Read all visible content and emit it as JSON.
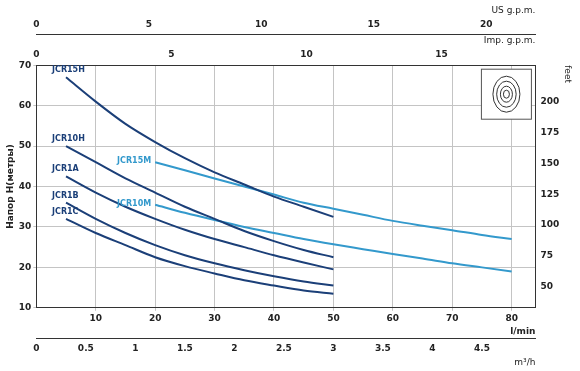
{
  "chart_data": {
    "type": "line",
    "xlabel": "l/min",
    "xlim": [
      0,
      84
    ],
    "xticks": [
      10,
      20,
      30,
      40,
      50,
      60,
      70,
      80
    ],
    "x2label": "m³/h",
    "x2lim": [
      0,
      5.04
    ],
    "x2ticks": [
      0,
      0.5,
      1,
      1.5,
      2,
      2.5,
      3,
      3.5,
      4,
      4.5
    ],
    "x3label": "US g.p.m.",
    "x3lim": [
      0,
      22.19
    ],
    "x3ticks": [
      0,
      5,
      10,
      15,
      20
    ],
    "x4label": "Imp. g.p.m.",
    "x4lim": [
      0,
      18.48
    ],
    "x4ticks": [
      0,
      5,
      10,
      15
    ],
    "ylabel": "Напор H(метры)",
    "ylim": [
      10,
      70
    ],
    "yticks": [
      10,
      20,
      30,
      40,
      50,
      60,
      70
    ],
    "y2label": "feet",
    "y2lim": [
      32.81,
      229.66
    ],
    "y2ticks": [
      50,
      75,
      100,
      125,
      150,
      175,
      200
    ],
    "grid": true,
    "series": [
      {
        "name": "JCR15H",
        "color": "#1b3f78",
        "x": [
          5,
          10,
          15,
          20,
          25,
          30,
          35,
          40,
          45,
          50
        ],
        "values": [
          67,
          61,
          55.5,
          51,
          47,
          43.5,
          40.5,
          37.5,
          35,
          32.5
        ]
      },
      {
        "name": "JCR15M",
        "color": "#3399cc",
        "x": [
          20,
          25,
          30,
          35,
          40,
          45,
          50,
          55,
          60,
          65,
          70,
          75,
          80
        ],
        "values": [
          46,
          44,
          42,
          40,
          38,
          36,
          34.5,
          33,
          31.5,
          30.3,
          29.2,
          28,
          27
        ]
      },
      {
        "name": "JCR10H",
        "color": "#1b3f78",
        "x": [
          5,
          10,
          15,
          20,
          25,
          30,
          35,
          40,
          45,
          50
        ],
        "values": [
          50,
          46,
          42,
          38.5,
          35,
          32,
          29,
          26.5,
          24.3,
          22.5
        ]
      },
      {
        "name": "JCR10M",
        "color": "#3399cc",
        "x": [
          20,
          25,
          30,
          35,
          40,
          45,
          50,
          55,
          60,
          65,
          70,
          75,
          80
        ],
        "values": [
          35.5,
          33.5,
          31.7,
          30,
          28.5,
          27,
          25.7,
          24.5,
          23.3,
          22.2,
          21,
          20,
          19
        ]
      },
      {
        "name": "JCR1A",
        "color": "#1b3f78",
        "x": [
          5,
          10,
          15,
          20,
          25,
          30,
          35,
          40,
          45,
          50
        ],
        "values": [
          42.5,
          38.5,
          35,
          32,
          29.3,
          27,
          25,
          23,
          21.2,
          19.5
        ]
      },
      {
        "name": "JCR1B",
        "color": "#1b3f78",
        "x": [
          5,
          10,
          15,
          20,
          25,
          30,
          35,
          40,
          45,
          50
        ],
        "values": [
          36,
          32,
          28.5,
          25.5,
          23,
          21,
          19.3,
          17.8,
          16.5,
          15.5
        ]
      },
      {
        "name": "JCR1C",
        "color": "#1b3f78",
        "x": [
          5,
          10,
          15,
          20,
          25,
          30,
          35,
          40,
          45,
          50
        ],
        "values": [
          32,
          28.5,
          25.5,
          22.5,
          20.3,
          18.5,
          16.8,
          15.5,
          14.3,
          13.5
        ]
      }
    ]
  }
}
